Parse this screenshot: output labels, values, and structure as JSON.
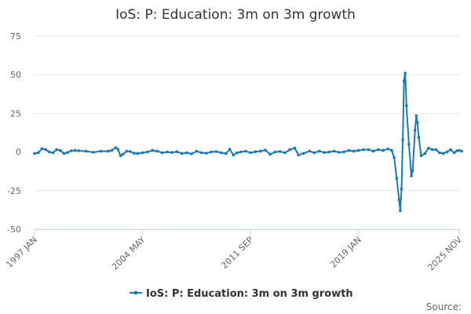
{
  "chart_data": {
    "type": "line",
    "title": "IoS: P: Education: 3m on 3m growth",
    "xlabel": "",
    "ylabel": "",
    "x_tick_labels": [
      "1997 JAN",
      "2004 MAY",
      "2011 SEP",
      "2019 JAN",
      "2025 NOV"
    ],
    "x_range": [
      "1997 JAN",
      "2025 NOV"
    ],
    "y_ticks": [
      "-50",
      "-25",
      "0",
      "25",
      "50",
      "75"
    ],
    "ylim": [
      -50,
      75
    ],
    "grid": "horizontal",
    "legend_position": "bottom",
    "credit": "Source:",
    "colors": {
      "series": "#1a7ab5",
      "grid": "#e6e6e6",
      "axis": "#ccd6eb"
    },
    "series": [
      {
        "name": "IoS: P: Education: 3m on 3m growth",
        "points": [
          [
            "1997 JAN",
            -1.0
          ],
          [
            "1997 APR",
            -0.5
          ],
          [
            "1997 JUL",
            2.2
          ],
          [
            "1997 OCT",
            1.5
          ],
          [
            "1998 JAN",
            0.0
          ],
          [
            "1998 APR",
            -0.5
          ],
          [
            "1998 JUL",
            1.5
          ],
          [
            "1998 OCT",
            1.0
          ],
          [
            "1999 JAN",
            -1.0
          ],
          [
            "1999 APR",
            -0.3
          ],
          [
            "1999 JUL",
            0.8
          ],
          [
            "1999 OCT",
            1.0
          ],
          [
            "2000 JAN",
            0.8
          ],
          [
            "2000 JUL",
            0.5
          ],
          [
            "2001 JAN",
            -0.2
          ],
          [
            "2001 JUL",
            0.5
          ],
          [
            "2002 JAN",
            0.5
          ],
          [
            "2002 APR",
            1.0
          ],
          [
            "2002 JUL",
            2.8
          ],
          [
            "2002 SEP",
            1.8
          ],
          [
            "2002 NOV",
            -2.5
          ],
          [
            "2003 JAN",
            -1.5
          ],
          [
            "2003 APR",
            0.5
          ],
          [
            "2003 JUL",
            0.3
          ],
          [
            "2003 OCT",
            -0.8
          ],
          [
            "2004 JAN",
            -1.0
          ],
          [
            "2004 MAY",
            -0.5
          ],
          [
            "2004 SEP",
            0.0
          ],
          [
            "2005 JAN",
            1.0
          ],
          [
            "2005 MAY",
            0.5
          ],
          [
            "2005 SEP",
            -0.5
          ],
          [
            "2006 JAN",
            0.0
          ],
          [
            "2006 MAY",
            -0.3
          ],
          [
            "2006 SEP",
            0.2
          ],
          [
            "2007 JAN",
            -1.0
          ],
          [
            "2007 MAY",
            -0.5
          ],
          [
            "2007 SEP",
            -1.2
          ],
          [
            "2008 JAN",
            0.5
          ],
          [
            "2008 MAY",
            -0.5
          ],
          [
            "2008 SEP",
            -0.8
          ],
          [
            "2009 JAN",
            0.0
          ],
          [
            "2009 MAY",
            0.3
          ],
          [
            "2009 SEP",
            -0.5
          ],
          [
            "2010 JAN",
            -1.0
          ],
          [
            "2010 APR",
            1.8
          ],
          [
            "2010 JUL",
            -2.0
          ],
          [
            "2010 OCT",
            -0.5
          ],
          [
            "2011 JAN",
            0.0
          ],
          [
            "2011 MAY",
            0.5
          ],
          [
            "2011 SEP",
            -0.5
          ],
          [
            "2012 JAN",
            0.2
          ],
          [
            "2012 MAY",
            0.5
          ],
          [
            "2012 SEP",
            1.2
          ],
          [
            "2013 JAN",
            -1.5
          ],
          [
            "2013 MAY",
            0.0
          ],
          [
            "2013 SEP",
            0.3
          ],
          [
            "2014 JAN",
            -0.5
          ],
          [
            "2014 MAY",
            1.5
          ],
          [
            "2014 SEP",
            2.5
          ],
          [
            "2014 DEC",
            -2.0
          ],
          [
            "2015 APR",
            -1.0
          ],
          [
            "2015 SEP",
            0.5
          ],
          [
            "2016 JAN",
            -0.5
          ],
          [
            "2016 MAY",
            0.5
          ],
          [
            "2016 SEP",
            -0.3
          ],
          [
            "2017 JAN",
            0.0
          ],
          [
            "2017 MAY",
            0.5
          ],
          [
            "2017 SEP",
            -0.2
          ],
          [
            "2018 JAN",
            0.0
          ],
          [
            "2018 MAY",
            1.0
          ],
          [
            "2018 SEP",
            0.5
          ],
          [
            "2019 JAN",
            1.0
          ],
          [
            "2019 MAY",
            1.5
          ],
          [
            "2019 SEP",
            1.5
          ],
          [
            "2020 JAN",
            0.5
          ],
          [
            "2020 MAY",
            1.5
          ],
          [
            "2020 SEP",
            1.0
          ],
          [
            "2021 JAN",
            2.0
          ],
          [
            "2021 APR",
            1.0
          ],
          [
            "2021 JUN",
            -3.5
          ],
          [
            "2021 AUG",
            -17.0
          ],
          [
            "2021 OCT",
            -31.0
          ],
          [
            "2021 NOV",
            -38.0
          ],
          [
            "2021 DEC",
            -24.0
          ],
          [
            "2022 JAN",
            8.0
          ],
          [
            "2022 FEB",
            46.0
          ],
          [
            "2022 MAR",
            51.0
          ],
          [
            "2022 APR",
            30.0
          ],
          [
            "2022 JUN",
            5.0
          ],
          [
            "2022 AUG",
            -15.5
          ],
          [
            "2022 SEP",
            -12.0
          ],
          [
            "2022 NOV",
            14.0
          ],
          [
            "2022 DEC",
            23.5
          ],
          [
            "2023 JAN",
            19.0
          ],
          [
            "2023 FEB",
            9.5
          ],
          [
            "2023 APR",
            -2.5
          ],
          [
            "2023 JUL",
            -1.0
          ],
          [
            "2023 OCT",
            2.5
          ],
          [
            "2024 JAN",
            1.5
          ],
          [
            "2024 APR",
            1.5
          ],
          [
            "2024 JUL",
            -0.5
          ],
          [
            "2024 OCT",
            -1.0
          ],
          [
            "2025 JAN",
            0.0
          ],
          [
            "2025 APR",
            1.5
          ],
          [
            "2025 JUL",
            -0.5
          ],
          [
            "2025 SEP",
            0.8
          ],
          [
            "2025 NOV",
            1.0
          ],
          [
            "2026 JAN",
            0.5
          ]
        ]
      }
    ]
  }
}
